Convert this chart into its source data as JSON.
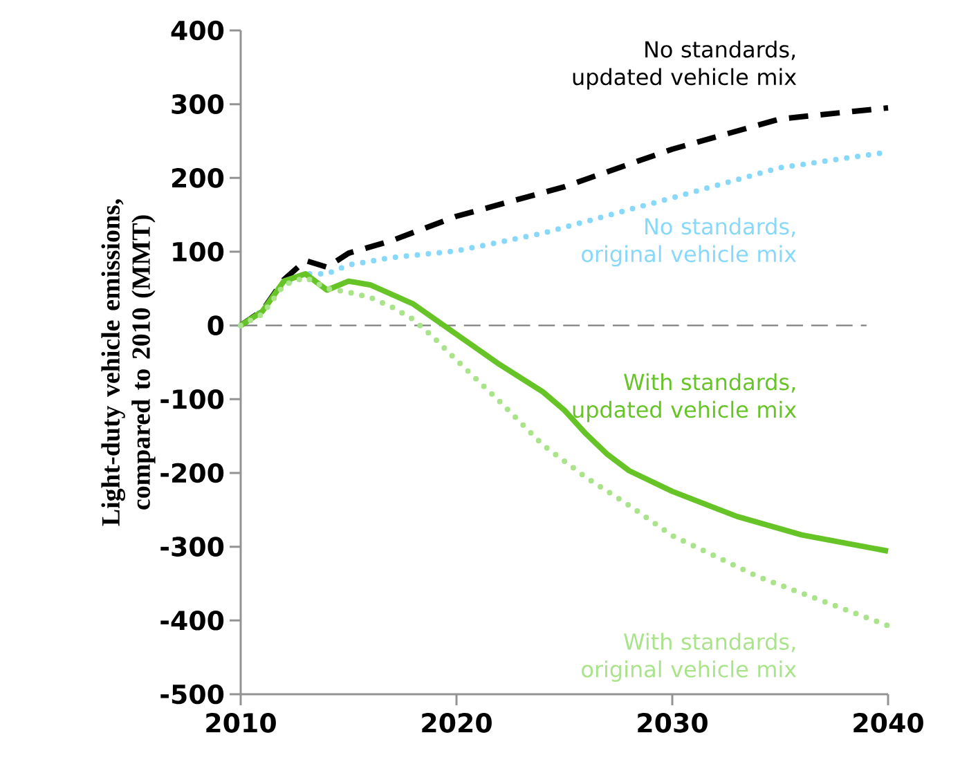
{
  "chart_data": {
    "type": "line",
    "ylabel": "Light-duty vehicle emissions, compared to 2010 (MMT)",
    "xlim": [
      2010,
      2040
    ],
    "xticks": [
      2010,
      2020,
      2030,
      2040
    ],
    "ylim": [
      -500,
      400
    ],
    "yticks": [
      -500,
      -400,
      -300,
      -200,
      -100,
      0,
      100,
      200,
      300,
      400
    ],
    "grid": false,
    "marker": "none",
    "ref_lines": [
      {
        "axis": "y",
        "value": 0,
        "color": "#808080",
        "line_style": "dashed"
      }
    ],
    "series": [
      {
        "name": "No standards, updated vehicle mix",
        "color": "#000000",
        "line_style": "dashed",
        "x": [
          2010,
          2011,
          2012,
          2013,
          2014,
          2015,
          2017,
          2020,
          2025,
          2030,
          2035,
          2040
        ],
        "values": [
          0,
          20,
          62,
          88,
          79,
          98,
          115,
          148,
          188,
          239,
          280,
          295
        ]
      },
      {
        "name": "No standards, original vehicle mix",
        "color": "#87d8fa",
        "line_style": "dotted",
        "x": [
          2010,
          2011,
          2012,
          2013,
          2014,
          2015,
          2017,
          2020,
          2024,
          2030,
          2035,
          2040
        ],
        "values": [
          0,
          20,
          55,
          70,
          70,
          82,
          92,
          101,
          125,
          173,
          214,
          235
        ]
      },
      {
        "name": "With standards, updated vehicle mix",
        "color": "#66c426",
        "line_style": "solid",
        "x": [
          2010,
          2011,
          2012,
          2013,
          2014,
          2015,
          2016,
          2018,
          2020,
          2022,
          2024,
          2025,
          2026,
          2027,
          2028,
          2030,
          2033,
          2036,
          2040
        ],
        "values": [
          0,
          19,
          60,
          70,
          48,
          60,
          55,
          29,
          -12,
          -53,
          -90,
          -115,
          -147,
          -175,
          -197,
          -225,
          -259,
          -284,
          -306
        ]
      },
      {
        "name": "With standards, original vehicle mix",
        "color": "#a9e38a",
        "line_style": "dotted",
        "x": [
          2010,
          2011,
          2012,
          2013,
          2014,
          2015,
          2016,
          2017,
          2018,
          2019,
          2020,
          2022,
          2024,
          2026,
          2028,
          2030,
          2032,
          2034,
          2036,
          2038,
          2040
        ],
        "values": [
          0,
          15,
          55,
          65,
          50,
          45,
          38,
          25,
          8,
          -18,
          -47,
          -103,
          -162,
          -206,
          -244,
          -285,
          -313,
          -341,
          -363,
          -385,
          -407
        ]
      }
    ]
  }
}
